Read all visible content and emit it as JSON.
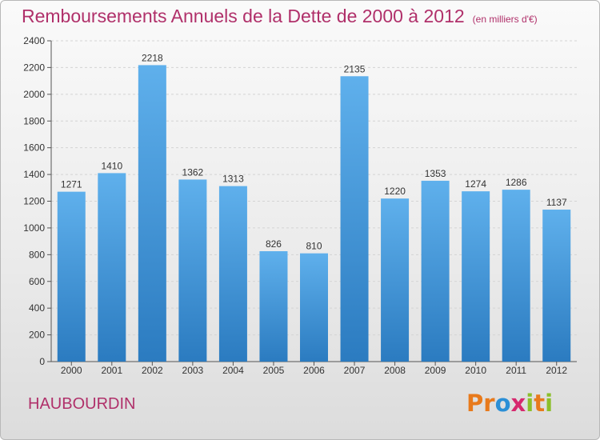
{
  "header": {
    "title": "Remboursements Annuels de la Dette de 2000 à 2012",
    "subtitle": "(en milliers d'€)"
  },
  "footer": {
    "city": "HAUBOURDIN",
    "logo": [
      "P",
      "r",
      "o",
      "x",
      "i",
      "t",
      "i"
    ]
  },
  "colors": {
    "bar_top": "#5fb0ec",
    "bar_bottom": "#2b7bc0",
    "title": "#b0306a",
    "logo": [
      "#e87a1c",
      "#e87a1c",
      "#2b8fd6",
      "#d6286e",
      "#8bbf2a",
      "#e87a1c",
      "#8bbf2a"
    ]
  },
  "chart_data": {
    "type": "bar",
    "title": "Remboursements Annuels de la Dette de 2000 à 2012",
    "categories": [
      "2000",
      "2001",
      "2002",
      "2003",
      "2004",
      "2005",
      "2006",
      "2007",
      "2008",
      "2009",
      "2010",
      "2011",
      "2012"
    ],
    "values": [
      1271,
      1410,
      2218,
      1362,
      1313,
      826,
      810,
      2135,
      1220,
      1353,
      1274,
      1286,
      1137
    ],
    "ylim": [
      0,
      2400
    ],
    "yticks": [
      0,
      200,
      400,
      600,
      800,
      1000,
      1200,
      1400,
      1600,
      1800,
      2000,
      2200,
      2400
    ],
    "grid": true,
    "xlabel": "",
    "ylabel": ""
  }
}
